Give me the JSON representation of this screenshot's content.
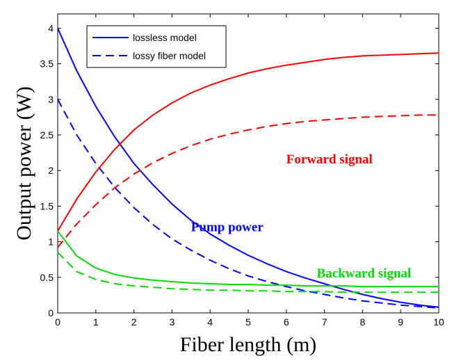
{
  "chart_data": {
    "type": "line",
    "xlabel": "Fiber length (m)",
    "ylabel": "Output power (W)",
    "xlim": [
      0,
      10
    ],
    "ylim": [
      0,
      4.2
    ],
    "xticks": [
      "0",
      "1",
      "2",
      "3",
      "4",
      "5",
      "6",
      "7",
      "8",
      "9",
      "10"
    ],
    "yticks": [
      "0",
      "0.5",
      "1",
      "1.5",
      "2",
      "2.5",
      "3",
      "3.5",
      "4"
    ],
    "grid": false,
    "legend": {
      "placement": "top-left",
      "entries": [
        {
          "label": "lossless model",
          "style": "solid",
          "color": "#0000ff"
        },
        {
          "label": "lossy fiber model",
          "style": "dashed",
          "color": "#0000ff"
        }
      ]
    },
    "annotations": [
      {
        "text": "Forward signal",
        "color": "#ff0000",
        "x": 6.0,
        "y": 2.1
      },
      {
        "text": "Pump power",
        "color": "#0000ff",
        "x": 3.5,
        "y": 1.15
      },
      {
        "text": "Backward signal",
        "color": "#00dd00",
        "x": 6.8,
        "y": 0.5
      }
    ],
    "x": [
      0,
      0.5,
      1,
      1.5,
      2,
      2.5,
      3,
      3.5,
      4,
      4.5,
      5,
      5.5,
      6,
      6.5,
      7,
      7.5,
      8,
      8.5,
      9,
      9.5,
      10
    ],
    "series": [
      {
        "color": "#0000ff",
        "style": "solid",
        "values": [
          4.0,
          3.4,
          2.9,
          2.47,
          2.1,
          1.8,
          1.53,
          1.3,
          1.11,
          0.95,
          0.81,
          0.69,
          0.58,
          0.49,
          0.41,
          0.33,
          0.26,
          0.2,
          0.15,
          0.11,
          0.08
        ]
      },
      {
        "color": "#0000ff",
        "style": "dashed",
        "values": [
          3.0,
          2.5,
          2.1,
          1.76,
          1.48,
          1.24,
          1.04,
          0.88,
          0.74,
          0.62,
          0.52,
          0.44,
          0.37,
          0.31,
          0.26,
          0.21,
          0.17,
          0.14,
          0.11,
          0.09,
          0.07
        ]
      },
      {
        "color": "#ff0000",
        "style": "solid",
        "values": [
          1.15,
          1.6,
          1.98,
          2.3,
          2.57,
          2.78,
          2.95,
          3.09,
          3.2,
          3.29,
          3.37,
          3.43,
          3.48,
          3.52,
          3.56,
          3.59,
          3.61,
          3.62,
          3.63,
          3.64,
          3.65
        ]
      },
      {
        "color": "#ff0000",
        "style": "dashed",
        "values": [
          0.92,
          1.25,
          1.52,
          1.76,
          1.95,
          2.11,
          2.24,
          2.35,
          2.44,
          2.51,
          2.57,
          2.62,
          2.66,
          2.69,
          2.71,
          2.73,
          2.75,
          2.76,
          2.77,
          2.78,
          2.78
        ]
      },
      {
        "color": "#00dd00",
        "style": "solid",
        "values": [
          1.15,
          0.8,
          0.63,
          0.54,
          0.49,
          0.46,
          0.44,
          0.42,
          0.41,
          0.4,
          0.4,
          0.39,
          0.39,
          0.38,
          0.38,
          0.38,
          0.37,
          0.37,
          0.37,
          0.37,
          0.37
        ]
      },
      {
        "color": "#00dd00",
        "style": "dashed",
        "values": [
          0.85,
          0.58,
          0.47,
          0.41,
          0.38,
          0.36,
          0.34,
          0.33,
          0.32,
          0.32,
          0.31,
          0.31,
          0.3,
          0.3,
          0.3,
          0.29,
          0.29,
          0.29,
          0.29,
          0.29,
          0.29
        ]
      }
    ]
  }
}
